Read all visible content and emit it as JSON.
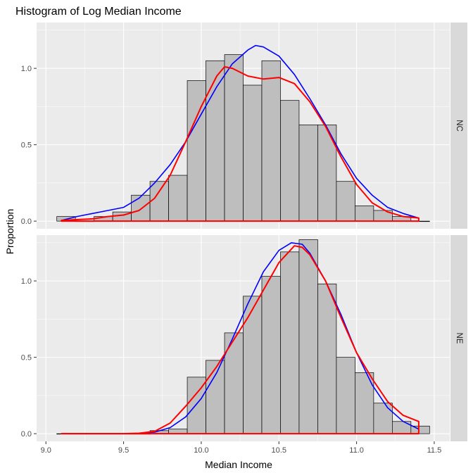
{
  "chart_data": {
    "type": "bar",
    "title": "Histogram of Log Median Income",
    "xlabel": "Median Income",
    "ylabel": "Proportion",
    "xlim": [
      8.94,
      11.6
    ],
    "ylim": [
      -0.05,
      1.3
    ],
    "x_ticks": [
      9.0,
      9.5,
      10.0,
      10.5,
      11.0,
      11.5
    ],
    "x_tick_labels": [
      "9.0",
      "9.5",
      "10.0",
      "10.5",
      "11.0",
      "11.5"
    ],
    "y_ticks": [
      0.0,
      0.5,
      1.0
    ],
    "y_tick_labels": [
      "0.0",
      "0.5",
      "1.0"
    ],
    "grid": true,
    "bins": {
      "starts": [
        9.07,
        9.19,
        9.31,
        9.43,
        9.55,
        9.67,
        9.79,
        9.91,
        10.03,
        10.15,
        10.27,
        10.39,
        10.51,
        10.63,
        10.75,
        10.87,
        10.99,
        11.11,
        11.23,
        11.35
      ],
      "width": 0.12
    },
    "panels": [
      {
        "label": "NC",
        "histogram": [
          0.03,
          0.0,
          0.03,
          0.06,
          0.17,
          0.26,
          0.3,
          0.92,
          1.05,
          1.09,
          0.89,
          1.05,
          0.79,
          0.63,
          0.63,
          0.26,
          0.1,
          0.07,
          0.03,
          0.0
        ],
        "curves": [
          {
            "color": "#0000ff",
            "points": [
              [
                9.1,
                0.005
              ],
              [
                9.2,
                0.03
              ],
              [
                9.3,
                0.05
              ],
              [
                9.4,
                0.07
              ],
              [
                9.5,
                0.09
              ],
              [
                9.6,
                0.15
              ],
              [
                9.7,
                0.25
              ],
              [
                9.8,
                0.37
              ],
              [
                9.9,
                0.52
              ],
              [
                10.0,
                0.7
              ],
              [
                10.1,
                0.88
              ],
              [
                10.2,
                1.03
              ],
              [
                10.3,
                1.12
              ],
              [
                10.35,
                1.15
              ],
              [
                10.4,
                1.14
              ],
              [
                10.5,
                1.08
              ],
              [
                10.6,
                0.96
              ],
              [
                10.7,
                0.8
              ],
              [
                10.8,
                0.63
              ],
              [
                10.9,
                0.44
              ],
              [
                11.0,
                0.28
              ],
              [
                11.1,
                0.17
              ],
              [
                11.2,
                0.09
              ],
              [
                11.3,
                0.05
              ],
              [
                11.4,
                0.02
              ]
            ]
          },
          {
            "color": "#ff0000",
            "points": [
              [
                9.1,
                0.005
              ],
              [
                9.2,
                0.01
              ],
              [
                9.3,
                0.015
              ],
              [
                9.4,
                0.03
              ],
              [
                9.5,
                0.04
              ],
              [
                9.6,
                0.07
              ],
              [
                9.7,
                0.15
              ],
              [
                9.8,
                0.3
              ],
              [
                9.9,
                0.52
              ],
              [
                10.0,
                0.75
              ],
              [
                10.1,
                0.95
              ],
              [
                10.15,
                1.01
              ],
              [
                10.2,
                1.0
              ],
              [
                10.3,
                0.95
              ],
              [
                10.4,
                0.93
              ],
              [
                10.5,
                0.94
              ],
              [
                10.6,
                0.9
              ],
              [
                10.7,
                0.78
              ],
              [
                10.8,
                0.62
              ],
              [
                10.9,
                0.42
              ],
              [
                11.0,
                0.24
              ],
              [
                11.1,
                0.12
              ],
              [
                11.2,
                0.06
              ],
              [
                11.3,
                0.03
              ],
              [
                11.4,
                0.02
              ]
            ]
          }
        ]
      },
      {
        "label": "NE",
        "histogram": [
          0.0,
          0.0,
          0.0,
          0.0,
          0.0,
          0.02,
          0.03,
          0.37,
          0.48,
          0.66,
          0.9,
          1.03,
          1.19,
          1.27,
          0.98,
          0.5,
          0.4,
          0.2,
          0.08,
          0.05
        ],
        "curves": [
          {
            "color": "#0000ff",
            "points": [
              [
                9.1,
                0.0
              ],
              [
                9.5,
                0.0
              ],
              [
                9.6,
                0.002
              ],
              [
                9.7,
                0.01
              ],
              [
                9.8,
                0.04
              ],
              [
                9.9,
                0.11
              ],
              [
                10.0,
                0.23
              ],
              [
                10.1,
                0.4
              ],
              [
                10.2,
                0.62
              ],
              [
                10.3,
                0.85
              ],
              [
                10.4,
                1.06
              ],
              [
                10.5,
                1.2
              ],
              [
                10.58,
                1.25
              ],
              [
                10.65,
                1.24
              ],
              [
                10.7,
                1.18
              ],
              [
                10.8,
                1.0
              ],
              [
                10.9,
                0.78
              ],
              [
                11.0,
                0.53
              ],
              [
                11.1,
                0.32
              ],
              [
                11.2,
                0.17
              ],
              [
                11.3,
                0.08
              ],
              [
                11.4,
                0.03
              ]
            ]
          },
          {
            "color": "#ff0000",
            "points": [
              [
                9.1,
                0.0
              ],
              [
                9.5,
                0.0
              ],
              [
                9.6,
                0.003
              ],
              [
                9.7,
                0.015
              ],
              [
                9.8,
                0.07
              ],
              [
                9.9,
                0.18
              ],
              [
                10.0,
                0.3
              ],
              [
                10.1,
                0.44
              ],
              [
                10.2,
                0.6
              ],
              [
                10.3,
                0.76
              ],
              [
                10.4,
                0.94
              ],
              [
                10.5,
                1.12
              ],
              [
                10.6,
                1.23
              ],
              [
                10.65,
                1.22
              ],
              [
                10.7,
                1.17
              ],
              [
                10.8,
                1.0
              ],
              [
                10.9,
                0.76
              ],
              [
                11.0,
                0.53
              ],
              [
                11.1,
                0.36
              ],
              [
                11.2,
                0.21
              ],
              [
                11.3,
                0.12
              ],
              [
                11.4,
                0.08
              ]
            ]
          }
        ]
      }
    ]
  },
  "colors": {
    "panel_bg": "#ebebeb",
    "grid": "#ffffff",
    "strip_bg": "#d9d9d9",
    "bar_fill": "#bebebe",
    "bar_stroke": "#000000"
  }
}
